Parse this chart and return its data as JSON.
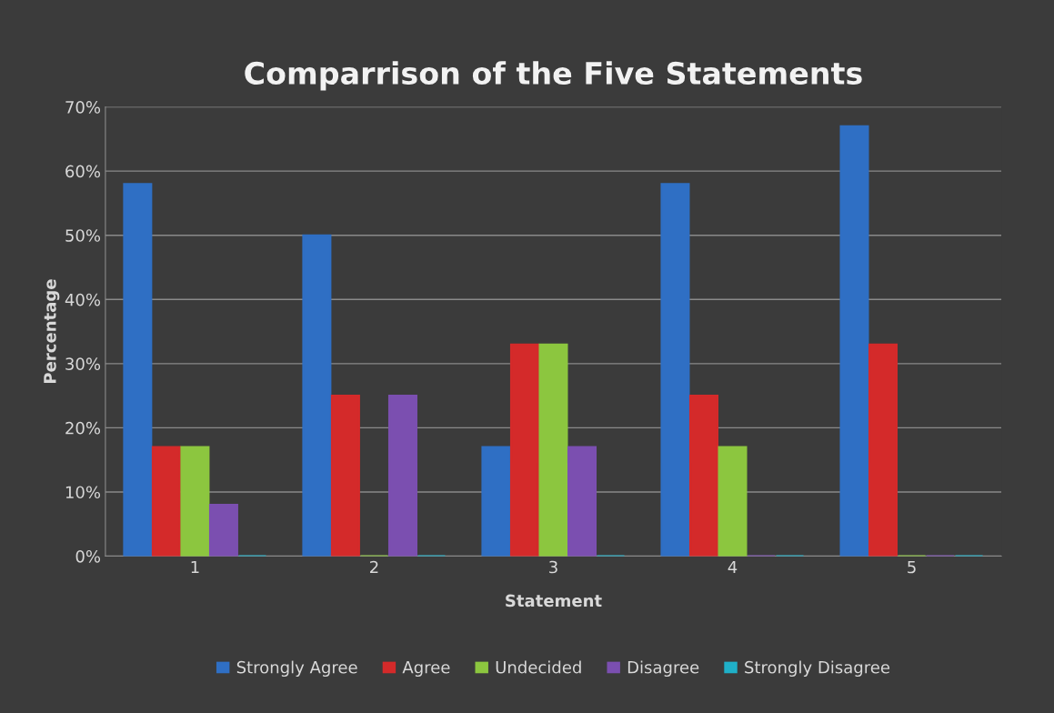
{
  "chart_data": {
    "type": "bar",
    "title": "Comparrison of the Five Statements",
    "xlabel": "Statement",
    "ylabel": "Percentage",
    "categories": [
      "1",
      "2",
      "3",
      "4",
      "5"
    ],
    "series": [
      {
        "name": "Strongly Agree",
        "color": "#2f6fc4",
        "values": [
          58,
          50,
          17,
          58,
          67
        ]
      },
      {
        "name": "Agree",
        "color": "#d42a2a",
        "values": [
          17,
          25,
          33,
          25,
          33
        ]
      },
      {
        "name": "Undecided",
        "color": "#8cc63f",
        "values": [
          17,
          0,
          33,
          17,
          0
        ]
      },
      {
        "name": "Disagree",
        "color": "#7b4fb0",
        "values": [
          8,
          25,
          17,
          0,
          0
        ]
      },
      {
        "name": "Strongly Disagree",
        "color": "#1fb0c8",
        "values": [
          0,
          0,
          0,
          0,
          0
        ]
      }
    ],
    "ylim": [
      0,
      70
    ],
    "yticks": [
      {
        "value": 0,
        "label": "0%"
      },
      {
        "value": 10,
        "label": "10%"
      },
      {
        "value": 20,
        "label": "20%"
      },
      {
        "value": 30,
        "label": "30%"
      },
      {
        "value": 40,
        "label": "40%"
      },
      {
        "value": 50,
        "label": "50%"
      },
      {
        "value": 60,
        "label": "60%"
      },
      {
        "value": 70,
        "label": "70%"
      }
    ],
    "grid": "y",
    "legend": "bottom"
  }
}
